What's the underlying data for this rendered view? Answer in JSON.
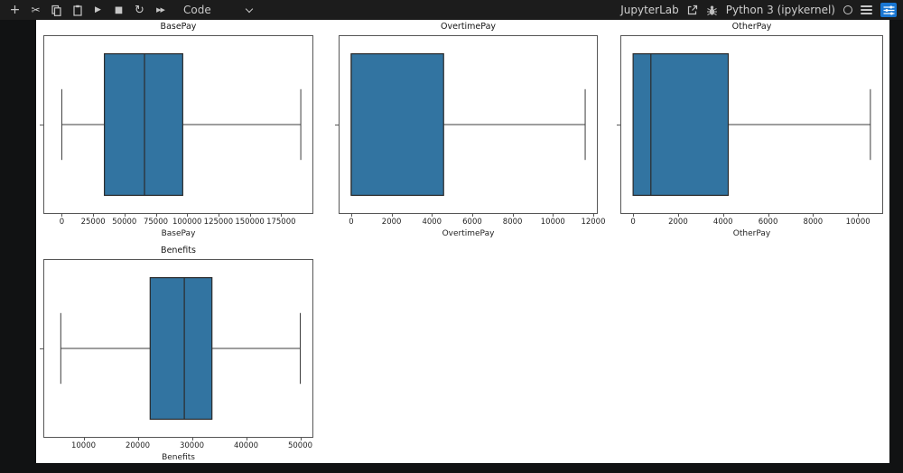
{
  "toolbar": {
    "cell_type_label": "Code",
    "buttons": {
      "add": "+",
      "play": "▶",
      "stop": "■",
      "restart": "↻",
      "run_all": "▶▶",
      "cut": "✂"
    },
    "right": {
      "jupyterlab_label": "JupyterLab",
      "kernel_name": "Python 3 (ipykernel)"
    },
    "accent_blue": "#1976d2"
  },
  "colors": {
    "box_fill": "#3274a1",
    "box_edge": "#2b2b2b",
    "whisker": "#3c3c3c",
    "spine": "#565656"
  },
  "chart_data": [
    {
      "type": "boxplot",
      "orientation": "horizontal",
      "title": "BasePay",
      "xlabel": "BasePay",
      "xticks": [
        0,
        25000,
        50000,
        75000,
        100000,
        125000,
        150000,
        175000
      ],
      "xlim": [
        -14000,
        200000
      ],
      "stats": {
        "whisker_low": 0,
        "q1": 34000,
        "median": 66000,
        "q3": 96500,
        "whisker_high": 190700
      }
    },
    {
      "type": "boxplot",
      "orientation": "horizontal",
      "title": "OvertimePay",
      "xlabel": "OvertimePay",
      "xticks": [
        0,
        2000,
        4000,
        6000,
        8000,
        10000,
        12000
      ],
      "xlim": [
        -580,
        12180
      ],
      "stats": {
        "whisker_low": 0,
        "q1": 0,
        "median": 0,
        "q3": 4580,
        "whisker_high": 11600
      }
    },
    {
      "type": "boxplot",
      "orientation": "horizontal",
      "title": "OtherPay",
      "xlabel": "OtherPay",
      "xticks": [
        0,
        2000,
        4000,
        6000,
        8000,
        10000
      ],
      "xlim": [
        -527,
        11077
      ],
      "stats": {
        "whisker_low": 0,
        "q1": 0,
        "median": 790,
        "q3": 4230,
        "whisker_high": 10550
      }
    },
    {
      "type": "boxplot",
      "orientation": "horizontal",
      "title": "Benefits",
      "xlabel": "Benefits",
      "xticks": [
        10000,
        20000,
        30000,
        40000,
        50000
      ],
      "xlim": [
        2750,
        52250
      ],
      "stats": {
        "whisker_low": 5800,
        "q1": 22300,
        "median": 28600,
        "q3": 33700,
        "whisker_high": 50000
      }
    }
  ]
}
